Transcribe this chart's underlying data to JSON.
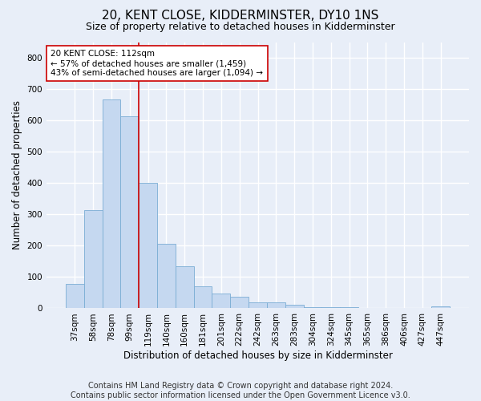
{
  "title": "20, KENT CLOSE, KIDDERMINSTER, DY10 1NS",
  "subtitle": "Size of property relative to detached houses in Kidderminster",
  "xlabel": "Distribution of detached houses by size in Kidderminster",
  "ylabel": "Number of detached properties",
  "categories": [
    "37sqm",
    "58sqm",
    "78sqm",
    "99sqm",
    "119sqm",
    "140sqm",
    "160sqm",
    "181sqm",
    "201sqm",
    "222sqm",
    "242sqm",
    "263sqm",
    "283sqm",
    "304sqm",
    "324sqm",
    "345sqm",
    "365sqm",
    "386sqm",
    "406sqm",
    "427sqm",
    "447sqm"
  ],
  "values": [
    78,
    314,
    667,
    614,
    400,
    205,
    135,
    70,
    46,
    37,
    20,
    20,
    11,
    5,
    5,
    5,
    1,
    1,
    0,
    0,
    7
  ],
  "bar_color": "#c5d8f0",
  "bar_edge_color": "#7aadd4",
  "vline_x_index": 3.5,
  "vline_color": "#cc0000",
  "annotation_text": "20 KENT CLOSE: 112sqm\n← 57% of detached houses are smaller (1,459)\n43% of semi-detached houses are larger (1,094) →",
  "annotation_box_facecolor": "#ffffff",
  "annotation_box_edgecolor": "#cc0000",
  "footer_line1": "Contains HM Land Registry data © Crown copyright and database right 2024.",
  "footer_line2": "Contains public sector information licensed under the Open Government Licence v3.0.",
  "ylim": [
    0,
    850
  ],
  "yticks": [
    0,
    100,
    200,
    300,
    400,
    500,
    600,
    700,
    800
  ],
  "background_color": "#e8eef8",
  "grid_color": "#ffffff",
  "title_fontsize": 11,
  "subtitle_fontsize": 9,
  "axis_label_fontsize": 8.5,
  "tick_fontsize": 7.5,
  "annotation_fontsize": 7.5,
  "footer_fontsize": 7
}
